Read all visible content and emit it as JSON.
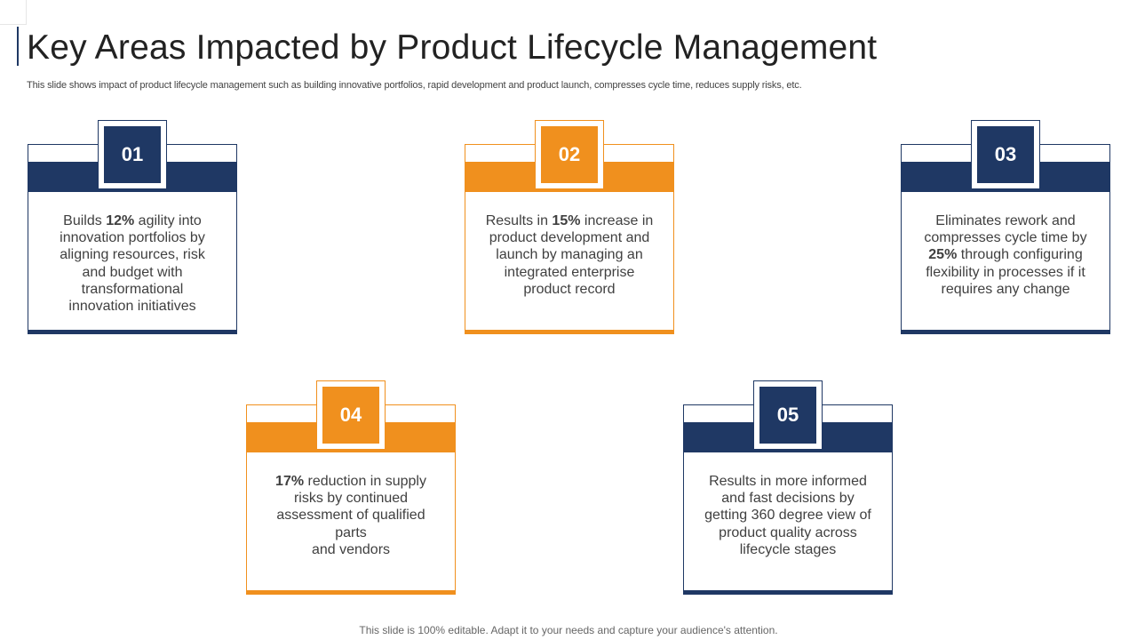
{
  "header": {
    "title": "Key Areas Impacted by Product Lifecycle Management",
    "subtitle": "This slide shows impact of product lifecycle management such as building innovative portfolios, rapid development and product launch, compresses cycle time, reduces supply risks, etc."
  },
  "colors": {
    "navy": "#1f3864",
    "orange": "#f0901e"
  },
  "cards": [
    {
      "number": "01",
      "color": "navy",
      "lines": [
        "Builds 12% agility into",
        "innovation portfolios by",
        "aligning resources, risk",
        "and budget with",
        "transformational",
        "innovation initiatives"
      ],
      "highlight": "12%"
    },
    {
      "number": "02",
      "color": "orange",
      "lines": [
        "Results in 15% increase in",
        "product development and",
        "launch by managing an",
        "integrated enterprise",
        "product record"
      ],
      "highlight": "15%"
    },
    {
      "number": "03",
      "color": "navy",
      "lines": [
        "Eliminates rework and",
        "compresses cycle time by",
        "25% through configuring",
        "flexibility in processes if it",
        "requires any change"
      ],
      "highlight": "25%"
    },
    {
      "number": "04",
      "color": "orange",
      "lines": [
        "17% reduction in supply",
        "risks by continued",
        "assessment of qualified",
        "parts",
        "and vendors"
      ],
      "highlight": "17%"
    },
    {
      "number": "05",
      "color": "navy",
      "lines": [
        "Results in more informed",
        "and fast decisions by",
        "getting 360 degree view of",
        "product quality across",
        "lifecycle stages"
      ],
      "highlight": ""
    }
  ],
  "footer": {
    "note": "This slide is 100% editable. Adapt it to your needs and capture your audience's attention."
  }
}
